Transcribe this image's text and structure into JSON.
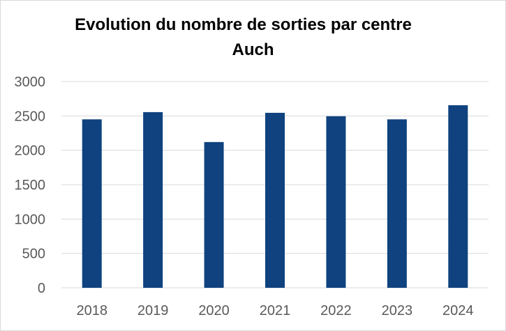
{
  "chart_data": {
    "type": "bar",
    "title": "Evolution du nombre de sorties par centre",
    "subtitle": "Auch",
    "categories": [
      "2018",
      "2019",
      "2020",
      "2021",
      "2022",
      "2023",
      "2024"
    ],
    "values": [
      2450,
      2555,
      2120,
      2545,
      2495,
      2450,
      2655
    ],
    "ylim": [
      0,
      3000
    ],
    "yticks": [
      0,
      500,
      1000,
      1500,
      2000,
      2500,
      3000
    ],
    "grid": true,
    "legend": "none",
    "bar_color": "#0f427f",
    "grid_color": "#d9d9d9"
  }
}
